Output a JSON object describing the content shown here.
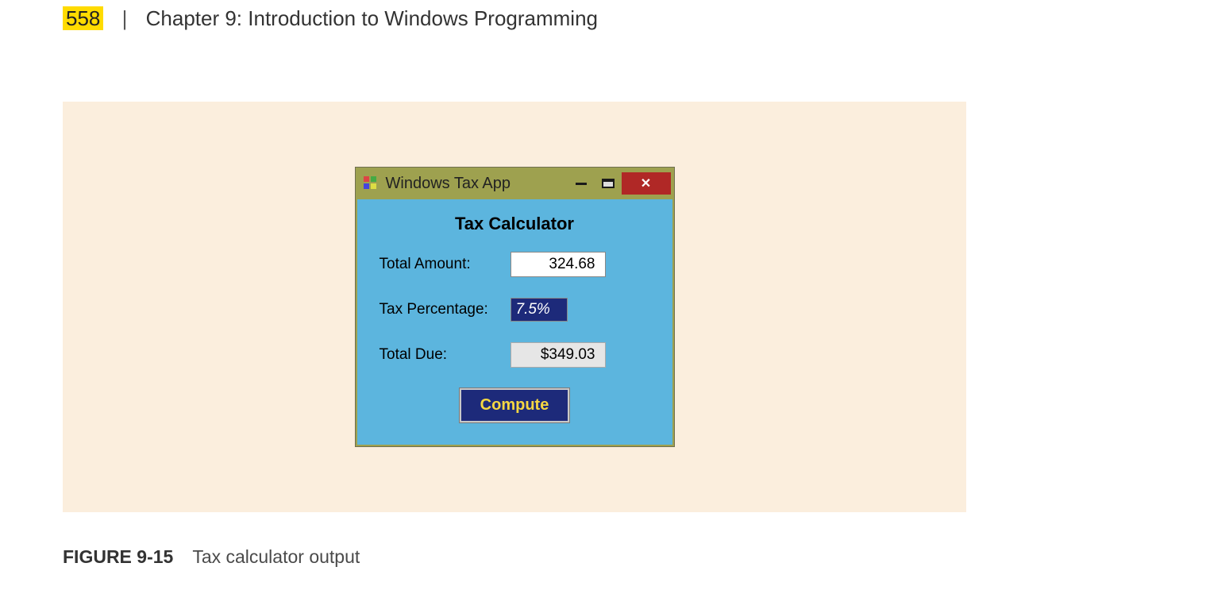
{
  "header": {
    "pageNumber": "558",
    "chapter": "Chapter 9:  Introduction to Windows Programming"
  },
  "figurePanel": {
    "background": "#fbeedd"
  },
  "window": {
    "title": "Windows Tax App",
    "titlebarColor": "#9ea14f",
    "bodyColor": "#5cb5de",
    "closeColor": "#b02826"
  },
  "form": {
    "heading": "Tax Calculator",
    "totalAmount": {
      "label": "Total Amount:",
      "value": "324.68"
    },
    "taxPercentage": {
      "label": "Tax Percentage:",
      "value": "7.5%"
    },
    "totalDue": {
      "label": "Total Due:",
      "value": "$349.03"
    },
    "computeLabel": "Compute",
    "computeBg": "#1d2a7a",
    "computeFg": "#f5d742"
  },
  "caption": {
    "figLabel": "FIGURE 9-15",
    "text": "Tax calculator output"
  }
}
